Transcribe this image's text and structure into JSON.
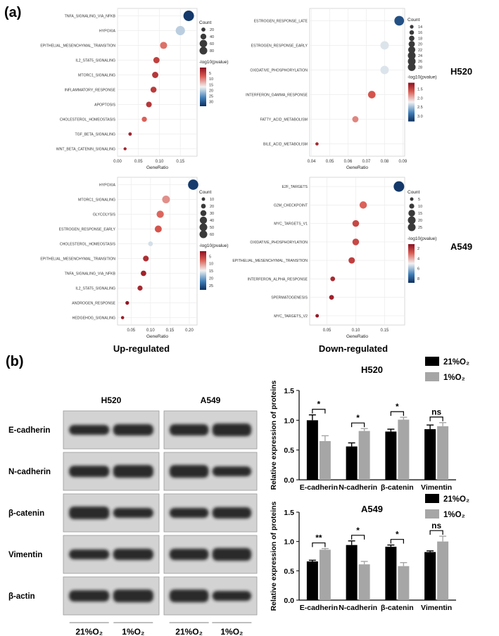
{
  "panel_labels": {
    "a": "(a)",
    "b": "(b)"
  },
  "section_labels": {
    "up": "Up-regulated",
    "down": "Down-regulated",
    "h520": "H520",
    "a549": "A549"
  },
  "legend_text": {
    "count": "Count",
    "pval": "-log10(pvalue)"
  },
  "colors": {
    "high": "#0d2e5e",
    "mid": "#f2f2f2",
    "low": "#8c1020",
    "bar_21": "#000000",
    "bar_1": "#a6a6a6"
  },
  "chart_data": [
    {
      "id": "up-h520",
      "type": "scatter",
      "xlabel": "GeneRatio",
      "xlim": [
        0,
        0.19
      ],
      "xticks": [
        "0.00",
        "0.05",
        "0.10",
        "0.15"
      ],
      "size_legend": [
        "20",
        "40",
        "60",
        "80"
      ],
      "size_range": [
        5,
        95
      ],
      "color_legend": [
        "5",
        "10",
        "15",
        "20",
        "25",
        "30"
      ],
      "color_range": [
        0,
        34
      ],
      "points": [
        {
          "term": "TNFA_SIGNALING_VIA_NFKB",
          "x": 0.17,
          "count": 95,
          "pval": 33
        },
        {
          "term": "HYPOXIA",
          "x": 0.15,
          "count": 80,
          "pval": 20
        },
        {
          "term": "EPITHELIAL_MESENCHYMAL_TRANSITION",
          "x": 0.11,
          "count": 55,
          "pval": 9
        },
        {
          "term": "IL2_STAT5_SIGNALING",
          "x": 0.093,
          "count": 45,
          "pval": 5
        },
        {
          "term": "MTORC1_SIGNALING",
          "x": 0.09,
          "count": 45,
          "pval": 4
        },
        {
          "term": "INFLAMMATORY_RESPONSE",
          "x": 0.086,
          "count": 42,
          "pval": 4.5
        },
        {
          "term": "APOPTOSIS",
          "x": 0.075,
          "count": 38,
          "pval": 4
        },
        {
          "term": "CHOLESTEROL_HOMEOSTASIS",
          "x": 0.064,
          "count": 32,
          "pval": 8
        },
        {
          "term": "TGF_BETA_SIGNALING",
          "x": 0.03,
          "count": 12,
          "pval": 2
        },
        {
          "term": "WNT_BETA_CATENIN_SIGNALING",
          "x": 0.018,
          "count": 8,
          "pval": 2
        }
      ]
    },
    {
      "id": "down-h520",
      "type": "scatter",
      "xlabel": "GeneRatio",
      "xlim": [
        0.039,
        0.091
      ],
      "xticks": [
        "0.04",
        "0.05",
        "0.06",
        "0.07",
        "0.08",
        "0.09"
      ],
      "size_legend": [
        "14",
        "16",
        "18",
        "20",
        "22",
        "24",
        "26",
        "28"
      ],
      "size_range": [
        12,
        30
      ],
      "color_legend": [
        "1.5",
        "2.0",
        "2.5",
        "3.0"
      ],
      "color_range": [
        1.15,
        3.3
      ],
      "points": [
        {
          "term": "ESTROGEN_RESPONSE_LATE",
          "x": 0.088,
          "count": 28,
          "pval": 3.1
        },
        {
          "term": "ESTROGEN_RESPONSE_EARLY",
          "x": 0.08,
          "count": 25,
          "pval": 2.3
        },
        {
          "term": "OXIDATIVE_PHOSPHORYLATION",
          "x": 0.08,
          "count": 25,
          "pval": 2.3
        },
        {
          "term": "INTERFERON_GAMMA_RESPONSE",
          "x": 0.073,
          "count": 23,
          "pval": 1.6
        },
        {
          "term": "FATTY_ACID_METABOLISM",
          "x": 0.064,
          "count": 20,
          "pval": 1.8
        },
        {
          "term": "BILE_ACID_METABOLISM",
          "x": 0.043,
          "count": 13,
          "pval": 1.3
        }
      ]
    },
    {
      "id": "up-a549",
      "type": "scatter",
      "xlabel": "GeneRatio",
      "xlim": [
        0.015,
        0.22
      ],
      "xticks": [
        "0.05",
        "0.10",
        "0.15",
        "0.20"
      ],
      "size_legend": [
        "10",
        "20",
        "30",
        "40",
        "50",
        "60"
      ],
      "size_range": [
        5,
        66
      ],
      "color_legend": [
        "5",
        "10",
        "15",
        "20",
        "25"
      ],
      "color_range": [
        1.5,
        28
      ],
      "points": [
        {
          "term": "HYPOXIA",
          "x": 0.21,
          "count": 64,
          "pval": 27
        },
        {
          "term": "MTORC1_SIGNALING",
          "x": 0.14,
          "count": 44,
          "pval": 10
        },
        {
          "term": "GLYCOLYSIS",
          "x": 0.125,
          "count": 40,
          "pval": 8
        },
        {
          "term": "ESTROGEN_RESPONSE_EARLY",
          "x": 0.12,
          "count": 38,
          "pval": 7
        },
        {
          "term": "CHOLESTEROL_HOMEOSTASIS",
          "x": 0.1,
          "count": 20,
          "pval": 16
        },
        {
          "term": "EPITHELIAL_MESENCHYMAL_TRANSITION",
          "x": 0.088,
          "count": 28,
          "pval": 4
        },
        {
          "term": "TNFA_SIGNALING_VIA_NFKB",
          "x": 0.082,
          "count": 26,
          "pval": 3
        },
        {
          "term": "IL2_STAT5_SIGNALING",
          "x": 0.073,
          "count": 23,
          "pval": 3.5
        },
        {
          "term": "ANDROGEN_RESPONSE",
          "x": 0.04,
          "count": 12,
          "pval": 2
        },
        {
          "term": "HEDGEHOG_SIGNALING",
          "x": 0.028,
          "count": 8,
          "pval": 2.5
        }
      ]
    },
    {
      "id": "down-a549",
      "type": "scatter",
      "xlabel": "GeneRatio",
      "xlim": [
        0.02,
        0.185
      ],
      "xticks": [
        "0.05",
        "0.10",
        "0.15"
      ],
      "size_legend": [
        "5",
        "10",
        "15",
        "20",
        "25"
      ],
      "size_range": [
        3,
        27
      ],
      "color_legend": [
        "2",
        "4",
        "6",
        "8"
      ],
      "color_range": [
        1.2,
        8.8
      ],
      "points": [
        {
          "term": "E2F_TARGETS",
          "x": 0.175,
          "count": 27,
          "pval": 8.6
        },
        {
          "term": "G2M_CHECKPOINT",
          "x": 0.113,
          "count": 17,
          "pval": 3
        },
        {
          "term": "MYC_TARGETS_V1",
          "x": 0.1,
          "count": 15,
          "pval": 2.5
        },
        {
          "term": "OXIDATIVE_PHOSPHORYLATION",
          "x": 0.1,
          "count": 15,
          "pval": 2.5
        },
        {
          "term": "EPITHELIAL_MESENCHYMAL_TRANSITION",
          "x": 0.093,
          "count": 14,
          "pval": 2.3
        },
        {
          "term": "INTERFERON_ALPHA_RESPONSE",
          "x": 0.06,
          "count": 9,
          "pval": 1.8
        },
        {
          "term": "SPERMATOGENESIS",
          "x": 0.058,
          "count": 9,
          "pval": 1.6
        },
        {
          "term": "MYC_TARGETS_V2",
          "x": 0.033,
          "count": 5,
          "pval": 1.4
        }
      ]
    },
    {
      "id": "bar-h520",
      "type": "bar",
      "title": "H520",
      "ylabel": "Relative expression of proteins",
      "ylim": [
        0,
        1.5
      ],
      "yticks": [
        "0.0",
        "0.5",
        "1.0",
        "1.5"
      ],
      "categories": [
        "E-cadherin",
        "N-cadherin",
        "β-catenin",
        "Vimentin"
      ],
      "series": [
        {
          "name": "21%O₂",
          "values": [
            1.0,
            0.56,
            0.81,
            0.85
          ],
          "err": [
            0.09,
            0.06,
            0.04,
            0.07
          ]
        },
        {
          "name": "1%O₂",
          "values": [
            0.65,
            0.82,
            1.01,
            0.9
          ],
          "err": [
            0.09,
            0.04,
            0.04,
            0.06
          ]
        }
      ],
      "significance": [
        "*",
        "*",
        "*",
        "ns"
      ]
    },
    {
      "id": "bar-a549",
      "type": "bar",
      "title": "A549",
      "ylabel": "Relative expression of proteins",
      "ylim": [
        0,
        1.5
      ],
      "yticks": [
        "0.0",
        "0.5",
        "1.0",
        "1.5"
      ],
      "categories": [
        "E-cadherin",
        "N-cadherin",
        "β-catenin",
        "Vimentin"
      ],
      "series": [
        {
          "name": "21%O₂",
          "values": [
            0.66,
            0.94,
            0.91,
            0.82
          ],
          "err": [
            0.02,
            0.07,
            0.03,
            0.02
          ]
        },
        {
          "name": "1%O₂",
          "values": [
            0.86,
            0.61,
            0.58,
            1.0
          ],
          "err": [
            0.02,
            0.05,
            0.06,
            0.09
          ]
        }
      ],
      "significance": [
        "**",
        "*",
        "*",
        "ns"
      ]
    }
  ],
  "western_blot": {
    "cell_lines": [
      "H520",
      "A549"
    ],
    "proteins": [
      "E-cadherin",
      "N-cadherin",
      "β-catenin",
      "Vimentin",
      "β-actin"
    ],
    "lane_labels": [
      "21%O₂",
      "1%O₂",
      "21%O₂",
      "1%O₂"
    ]
  }
}
